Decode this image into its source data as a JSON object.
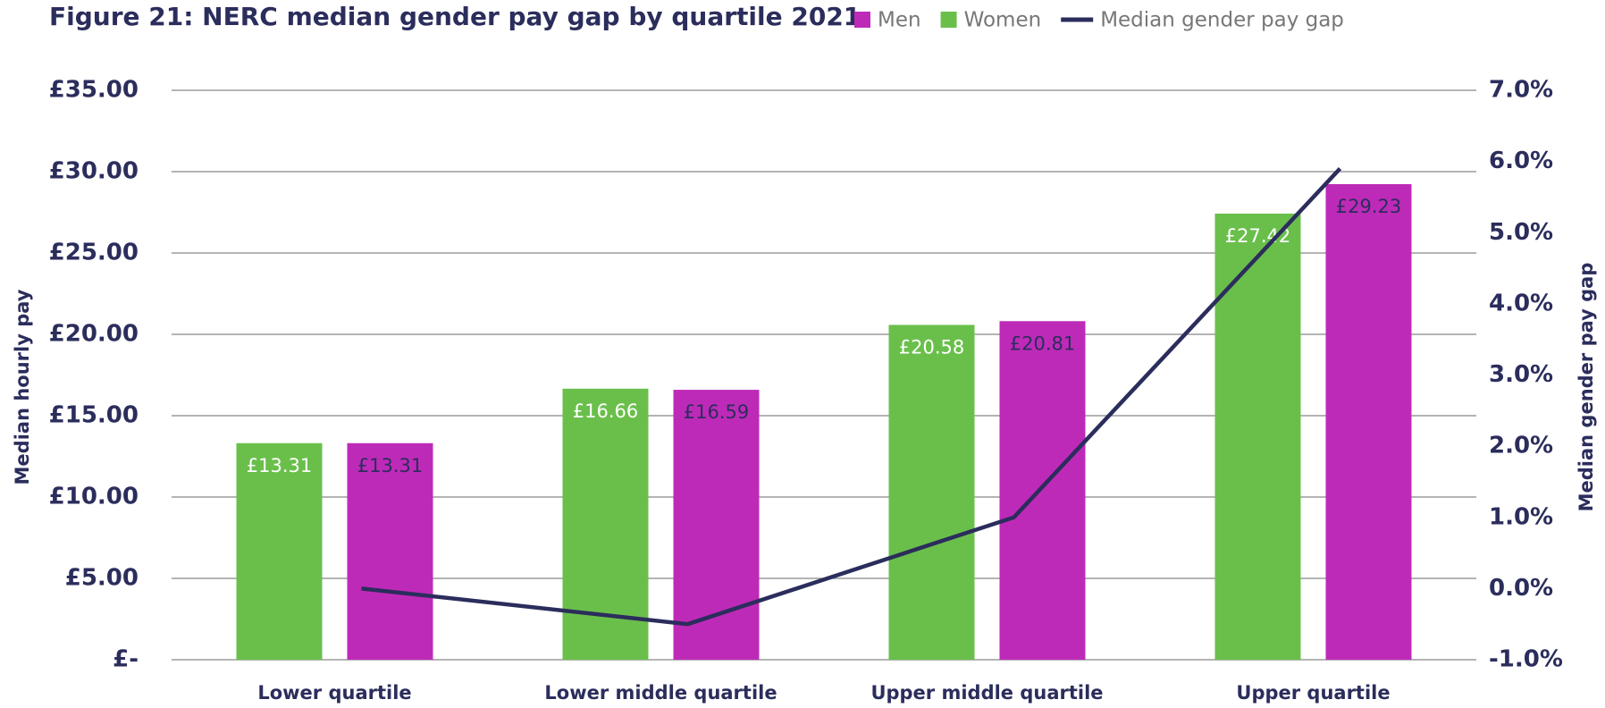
{
  "chart_data": {
    "type": "bar",
    "title": "Figure 21: NERC median gender pay gap by quartile 2021",
    "categories": [
      "Lower quartile",
      "Lower middle quartile",
      "Upper middle quartile",
      "Upper quartile"
    ],
    "series": [
      {
        "name": "Men",
        "color": "#be2ab8",
        "values": [
          13.31,
          16.59,
          20.81,
          29.23
        ],
        "value_labels": [
          "£13.31",
          "£16.59",
          "£20.81",
          "£29.23"
        ]
      },
      {
        "name": "Women",
        "color": "#6abf4b",
        "values": [
          13.31,
          16.66,
          20.58,
          27.42
        ],
        "value_labels": [
          "£13.31",
          "£16.66",
          "£20.58",
          "£27.42"
        ]
      },
      {
        "name": "Median gender pay gap",
        "type": "line",
        "axis": "y2",
        "color": "#2b2d5c",
        "values": [
          0.0,
          -0.5,
          1.0,
          5.9
        ]
      }
    ],
    "ylabel": "Median hourly pay",
    "y2label": "Median gender pay gap",
    "ylim": [
      0,
      35
    ],
    "yticks": [
      {
        "value": 0,
        "label": "£-"
      },
      {
        "value": 5,
        "label": "£5.00"
      },
      {
        "value": 10,
        "label": "£10.00"
      },
      {
        "value": 15,
        "label": "£15.00"
      },
      {
        "value": 20,
        "label": "£20.00"
      },
      {
        "value": 25,
        "label": "£25.00"
      },
      {
        "value": 30,
        "label": "£30.00"
      },
      {
        "value": 35,
        "label": "£35.00"
      }
    ],
    "y2lim": [
      -1,
      7
    ],
    "y2ticks": [
      {
        "value": -1,
        "label": "-1.0%"
      },
      {
        "value": 0,
        "label": "0.0%"
      },
      {
        "value": 1,
        "label": "1.0%"
      },
      {
        "value": 2,
        "label": "2.0%"
      },
      {
        "value": 3,
        "label": "3.0%"
      },
      {
        "value": 4,
        "label": "4.0%"
      },
      {
        "value": 5,
        "label": "5.0%"
      },
      {
        "value": 6,
        "label": "6.0%"
      },
      {
        "value": 7,
        "label": "7.0%"
      }
    ],
    "grid": true,
    "legend": "top"
  }
}
